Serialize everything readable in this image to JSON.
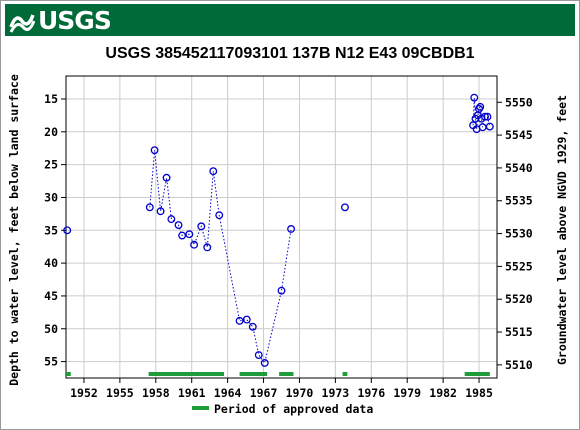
{
  "banner": {
    "agency": "USGS",
    "brand_color": "#006b39"
  },
  "chart_data": {
    "type": "scatter",
    "title": "USGS 385452117093101 137B N12 E43 09CBDB1",
    "xlabel": "",
    "ylabel_left": "Depth to water level, feet below land surface",
    "ylabel_right": "Groundwater level above NGVD 1929, feet",
    "xlim": [
      1950.5,
      1986.5
    ],
    "ylim_left": [
      57.5,
      11.5
    ],
    "ylim_right": [
      5508.0,
      5554.0
    ],
    "y_inverted": true,
    "x_ticks": [
      "1952",
      "1955",
      "1958",
      "1961",
      "1964",
      "1967",
      "1970",
      "1973",
      "1976",
      "1979",
      "1982",
      "1985"
    ],
    "y_ticks_left": [
      "15",
      "20",
      "25",
      "30",
      "35",
      "40",
      "45",
      "50",
      "55"
    ],
    "y_ticks_right": [
      "5510",
      "5515",
      "5520",
      "5525",
      "5530",
      "5535",
      "5540",
      "5545",
      "5550"
    ],
    "grid": true,
    "series": [
      {
        "marker": "open-circle",
        "color": "#0000cc",
        "x": [
          1950.6,
          1957.5,
          1957.9,
          1958.4,
          1958.9,
          1959.3,
          1959.9,
          1960.2,
          1960.8,
          1961.2,
          1961.8,
          1962.3,
          1962.8,
          1963.3,
          1965.0,
          1965.6,
          1966.1,
          1966.6,
          1967.1,
          1968.5,
          1969.3,
          1973.8,
          1984.5,
          1984.6,
          1984.7,
          1984.8,
          1984.9,
          1985.0,
          1985.1,
          1985.2,
          1985.3,
          1985.5,
          1985.7,
          1985.9
        ],
        "y": [
          35.0,
          31.5,
          22.8,
          32.1,
          27.0,
          33.3,
          34.2,
          35.8,
          35.6,
          37.2,
          34.4,
          37.6,
          26.0,
          32.7,
          48.8,
          48.6,
          49.7,
          54.0,
          55.2,
          44.2,
          34.8,
          31.5,
          19.0,
          14.8,
          18.0,
          19.6,
          17.5,
          16.5,
          16.2,
          18.0,
          19.3,
          17.7,
          17.7,
          19.2
        ],
        "segments": [
          [
            1,
            20
          ],
          [
            22,
            33
          ]
        ]
      }
    ],
    "approved_periods": [
      [
        1950.5,
        1950.9
      ],
      [
        1957.4,
        1963.7
      ],
      [
        1965.0,
        1967.3
      ],
      [
        1968.3,
        1969.5
      ],
      [
        1973.6,
        1974.0
      ],
      [
        1983.8,
        1985.9
      ]
    ],
    "approved_color": "#1e9c3a",
    "legend": {
      "label": "Period of approved data",
      "placement": "bottom-center"
    }
  }
}
